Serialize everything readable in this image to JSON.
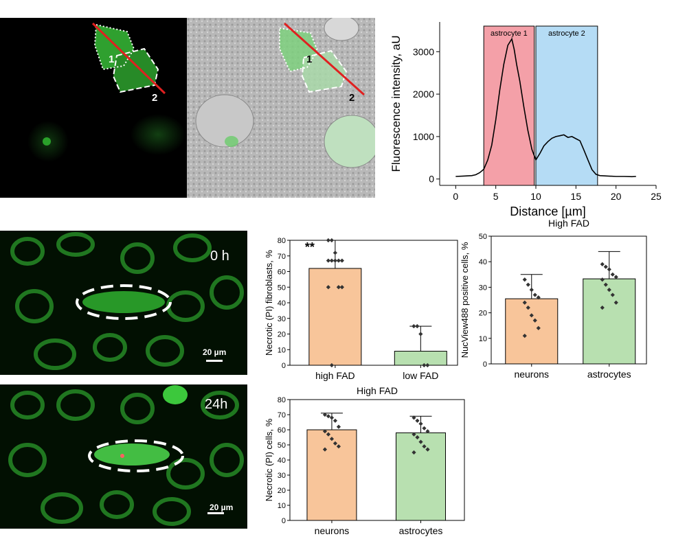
{
  "micrographs": {
    "top_left": {
      "region_labels": [
        "1",
        "2"
      ]
    },
    "top_right": {
      "region_labels": [
        "1",
        "2"
      ]
    },
    "bottom_0h": {
      "time_label": "0 h",
      "scale_bar": "20 µm"
    },
    "bottom_24h": {
      "time_label": "24h",
      "scale_bar": "20 µm"
    }
  },
  "chart_data": [
    {
      "type": "line",
      "title": "",
      "xlabel": "Distance [µm]",
      "ylabel": "Fluorescence intensity, aU",
      "xlim": [
        -2,
        25
      ],
      "ylim": [
        -150,
        3700
      ],
      "xticks": [
        "0",
        "5",
        "10",
        "15",
        "20",
        "25"
      ],
      "yticks": [
        "0",
        "1000",
        "2000",
        "3000"
      ],
      "regions": [
        {
          "label": "astrocyte 1",
          "x": [
            3.5,
            9.8
          ],
          "color": "#f4a0a8"
        },
        {
          "label": "astrocyte 2",
          "x": [
            10.0,
            17.7
          ],
          "color": "#b5dcf5"
        }
      ],
      "x": [
        0,
        1,
        2,
        2.5,
        3,
        3.5,
        4,
        4.5,
        5,
        5.5,
        6,
        6.5,
        7,
        7.3,
        7.6,
        8,
        8.5,
        9,
        9.5,
        10,
        10.5,
        11,
        11.5,
        12,
        12.5,
        13,
        13.5,
        14,
        14.5,
        15,
        15.5,
        16,
        16.5,
        17,
        17.5,
        18,
        19,
        20,
        21,
        22,
        22.5
      ],
      "series": [
        {
          "values": [
            60,
            70,
            80,
            100,
            150,
            230,
            450,
            800,
            1400,
            2100,
            2700,
            3150,
            3300,
            3050,
            2700,
            2300,
            1700,
            1150,
            700,
            450,
            600,
            780,
            880,
            960,
            1000,
            1020,
            1040,
            980,
            1000,
            950,
            900,
            680,
            450,
            220,
            110,
            80,
            70,
            60,
            60,
            55,
            60
          ]
        }
      ]
    },
    {
      "type": "bar",
      "title": "",
      "xlabel": "",
      "ylabel": "Necrotic (PI) fibroblasts, %",
      "ylim": [
        0,
        80
      ],
      "yticks": [
        "0",
        "10",
        "20",
        "30",
        "40",
        "50",
        "60",
        "70",
        "80"
      ],
      "categories": [
        "high FAD",
        "low FAD"
      ],
      "values": [
        62,
        9
      ],
      "errors": [
        18,
        16
      ],
      "colors": [
        "#f8c59a",
        "#b8e0b0"
      ],
      "points": [
        [
          80,
          80,
          72,
          67,
          67,
          67,
          67,
          67,
          50,
          50,
          50,
          0
        ],
        [
          25,
          25,
          20,
          0,
          0
        ]
      ],
      "annotation": "**"
    },
    {
      "type": "bar",
      "title": "High FAD",
      "xlabel": "",
      "ylabel": "NucView488 positive cells, %",
      "ylim": [
        0,
        50
      ],
      "yticks": [
        "0",
        "10",
        "20",
        "30",
        "40",
        "50"
      ],
      "categories": [
        "neurons",
        "astrocytes"
      ],
      "values": [
        25.5,
        33.3
      ],
      "errors": [
        9.5,
        10.7
      ],
      "colors": [
        "#f8c59a",
        "#b8e0b0"
      ],
      "points": [
        [
          33,
          31,
          29,
          27,
          26,
          24,
          22,
          19,
          17,
          14,
          11
        ],
        [
          39,
          38,
          37,
          35,
          34,
          33,
          31,
          29,
          27,
          24,
          22
        ]
      ]
    },
    {
      "type": "bar",
      "title": "High FAD",
      "xlabel": "",
      "ylabel": "Necrotic (PI) cells, %",
      "ylim": [
        0,
        80
      ],
      "yticks": [
        "0",
        "10",
        "20",
        "30",
        "40",
        "50",
        "60",
        "70",
        "80"
      ],
      "categories": [
        "neurons",
        "astrocytes"
      ],
      "values": [
        60,
        58
      ],
      "errors": [
        11,
        11
      ],
      "colors": [
        "#f8c59a",
        "#b8e0b0"
      ],
      "points": [
        [
          70,
          69,
          68,
          66,
          62,
          59,
          57,
          54,
          51,
          49,
          47
        ],
        [
          68,
          66,
          64,
          61,
          59,
          57,
          55,
          52,
          49,
          47,
          45
        ]
      ]
    }
  ]
}
